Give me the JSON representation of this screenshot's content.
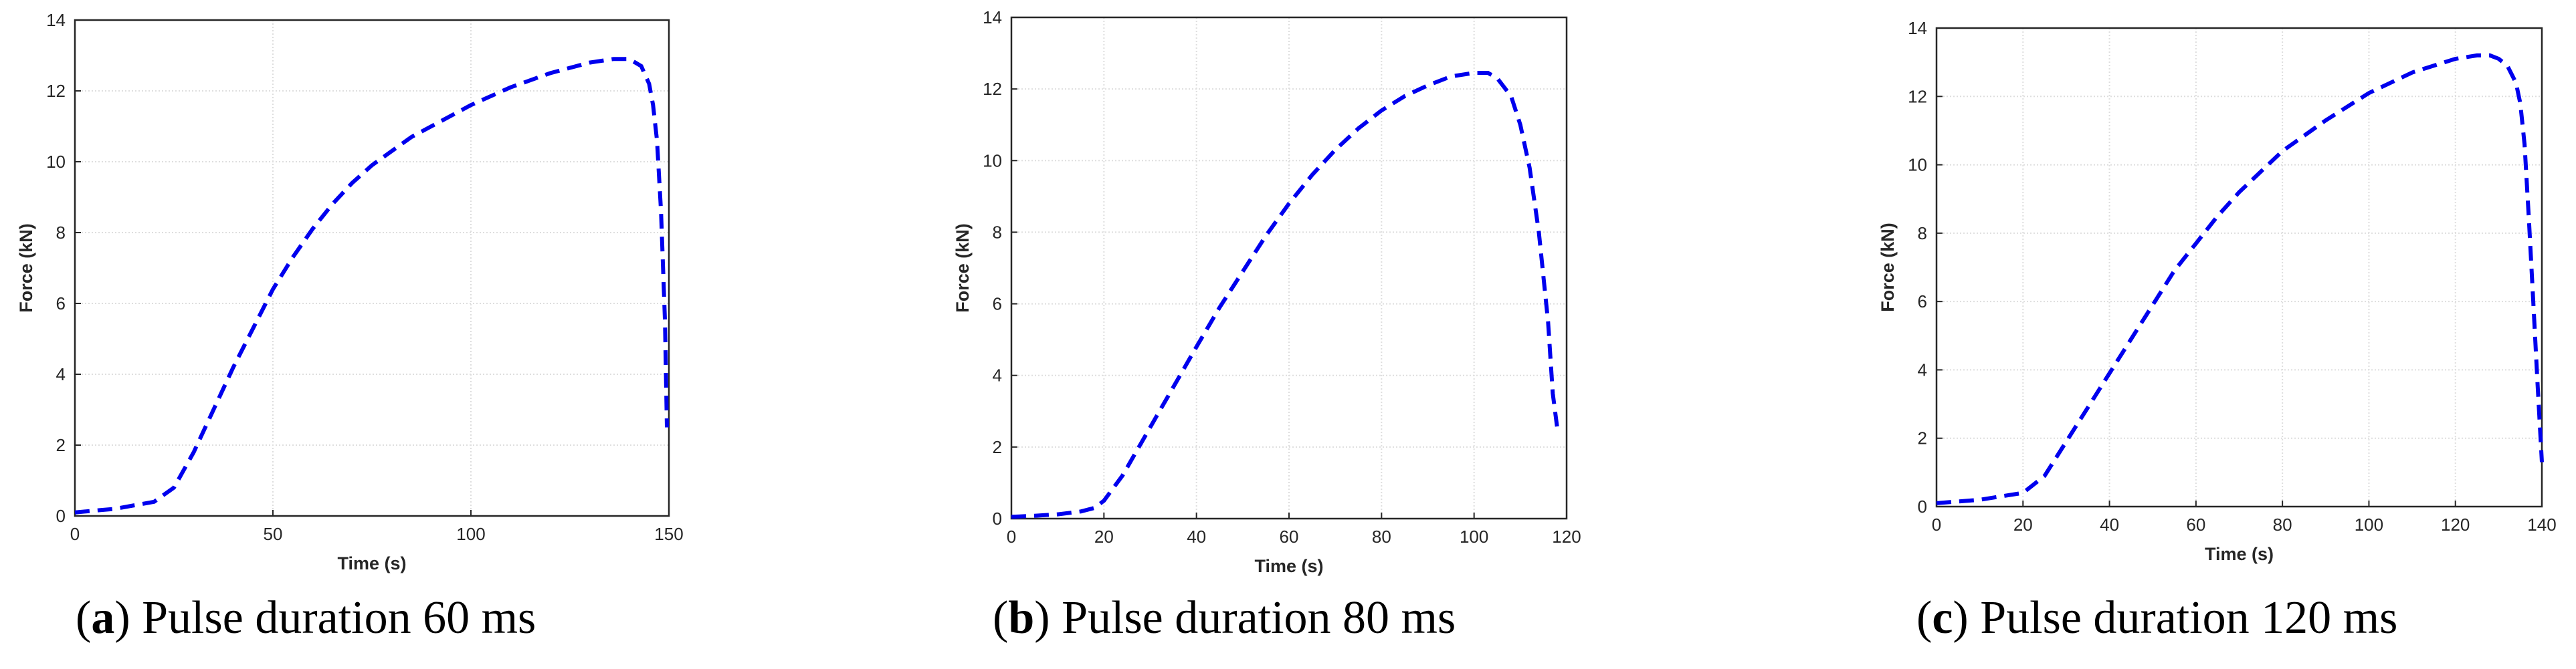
{
  "chart_data": [
    {
      "type": "line",
      "xlabel": "Time (s)",
      "ylabel": "Force (kN)",
      "xlim": [
        0,
        150
      ],
      "ylim": [
        0,
        14
      ],
      "xticks": [
        0,
        50,
        100,
        150
      ],
      "yticks": [
        0,
        2,
        4,
        6,
        8,
        10,
        12,
        14
      ],
      "grid": true,
      "color": "#0000ee",
      "line_style": "dashed",
      "caption_letter": "a",
      "caption_text": "Pulse duration 60 ms",
      "series": [
        {
          "x": [
            0,
            10,
            20,
            25,
            30,
            35,
            40,
            45,
            50,
            55,
            60,
            65,
            70,
            75,
            80,
            85,
            90,
            100,
            110,
            120,
            130,
            136,
            140,
            143,
            145,
            146,
            147,
            148,
            149,
            149.5
          ],
          "y": [
            0.1,
            0.2,
            0.4,
            0.8,
            1.8,
            3.0,
            4.2,
            5.3,
            6.4,
            7.3,
            8.1,
            8.8,
            9.4,
            9.9,
            10.3,
            10.7,
            11.0,
            11.6,
            12.1,
            12.5,
            12.8,
            12.9,
            12.9,
            12.7,
            12.2,
            11.6,
            10.6,
            8.6,
            5.5,
            2.5
          ]
        }
      ]
    },
    {
      "type": "line",
      "xlabel": "Time (s)",
      "ylabel": "Force (kN)",
      "xlim": [
        0,
        120
      ],
      "ylim": [
        0,
        14
      ],
      "xticks": [
        0,
        20,
        40,
        60,
        80,
        100,
        120
      ],
      "yticks": [
        0,
        2,
        4,
        6,
        8,
        10,
        12,
        14
      ],
      "grid": true,
      "color": "#0000ee",
      "line_style": "dashed",
      "caption_letter": "b",
      "caption_text": "Pulse duration 80 ms",
      "series": [
        {
          "x": [
            0,
            5,
            10,
            15,
            18,
            20,
            24,
            28,
            32,
            36,
            40,
            45,
            50,
            55,
            60,
            65,
            70,
            75,
            80,
            85,
            90,
            95,
            100,
            103,
            105,
            108,
            110,
            112,
            114,
            116,
            117,
            118
          ],
          "y": [
            0.05,
            0.08,
            0.12,
            0.2,
            0.3,
            0.5,
            1.2,
            2.1,
            3.0,
            3.9,
            4.8,
            5.9,
            6.9,
            7.9,
            8.8,
            9.6,
            10.3,
            10.9,
            11.4,
            11.8,
            12.1,
            12.35,
            12.45,
            12.45,
            12.3,
            11.8,
            11.0,
            9.8,
            8.0,
            5.5,
            3.5,
            2.5
          ]
        }
      ]
    },
    {
      "type": "line",
      "xlabel": "Time (s)",
      "ylabel": "Force (kN)",
      "xlim": [
        0,
        140
      ],
      "ylim": [
        0,
        14
      ],
      "xticks": [
        0,
        20,
        40,
        60,
        80,
        100,
        120,
        140
      ],
      "yticks": [
        0,
        2,
        4,
        6,
        8,
        10,
        12,
        14
      ],
      "grid": true,
      "color": "#0000ee",
      "line_style": "dashed",
      "caption_letter": "c",
      "caption_text": "Pulse duration 120 ms",
      "series": [
        {
          "x": [
            0,
            10,
            20,
            25,
            30,
            35,
            40,
            45,
            50,
            55,
            60,
            65,
            70,
            75,
            80,
            90,
            100,
            110,
            120,
            125,
            128,
            130,
            132,
            134,
            135,
            136,
            137,
            138,
            139,
            140
          ],
          "y": [
            0.1,
            0.2,
            0.4,
            0.9,
            1.9,
            2.9,
            3.9,
            4.9,
            5.9,
            6.9,
            7.7,
            8.5,
            9.2,
            9.8,
            10.4,
            11.3,
            12.1,
            12.7,
            13.1,
            13.2,
            13.2,
            13.1,
            12.9,
            12.4,
            11.8,
            10.6,
            8.4,
            6.0,
            3.6,
            1.3
          ]
        }
      ]
    }
  ]
}
